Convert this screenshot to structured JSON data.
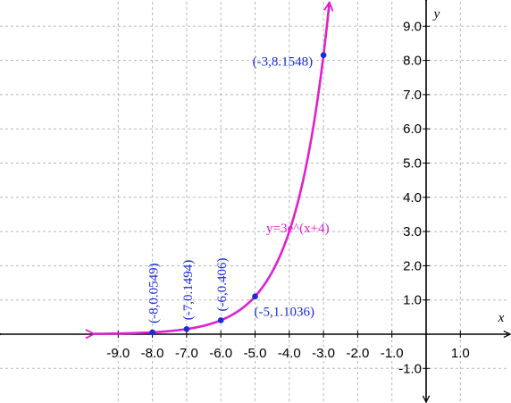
{
  "chart_data": {
    "type": "line",
    "title": "",
    "xlabel": "x",
    "ylabel": "y",
    "xlim": [
      -9.7,
      1.9
    ],
    "ylim": [
      -1.9,
      9.7
    ],
    "grid": true,
    "x_ticks": [
      -9,
      -8,
      -7,
      -6,
      -5,
      -4,
      -3,
      -2,
      -1,
      1
    ],
    "y_ticks": [
      -1,
      1,
      2,
      3,
      4,
      5,
      6,
      7,
      8,
      9
    ],
    "x_tick_labels": [
      "-9.0",
      "-8.0",
      "-7.0",
      "-6.0",
      "-5.0",
      "-4.0",
      "-3.0",
      "-2.0",
      "-1.0",
      "1.0"
    ],
    "y_tick_labels": [
      "-1.0",
      "1.0",
      "2.0",
      "3.0",
      "4.0",
      "5.0",
      "6.0",
      "7.0",
      "8.0",
      "9.0"
    ],
    "curve": {
      "label": "y=3e^(x+4)",
      "coefficient": 3,
      "shift": 4,
      "x_start": -9.7,
      "y_end": 9.7,
      "color": "#e020d0"
    },
    "points": [
      {
        "x": -8,
        "y": 0.0549,
        "label": "(-8,0.0549)"
      },
      {
        "x": -7,
        "y": 0.1494,
        "label": "(-7,0.1494)"
      },
      {
        "x": -6,
        "y": 0.406,
        "label": "(-6,0.406)"
      },
      {
        "x": -5,
        "y": 1.1036,
        "label": "(-5,1.1036)"
      },
      {
        "x": -3,
        "y": 8.1548,
        "label": "(-3,8.1548)"
      }
    ],
    "point_color": "#1a2bd8",
    "grid_color": "#b8b8b8"
  }
}
